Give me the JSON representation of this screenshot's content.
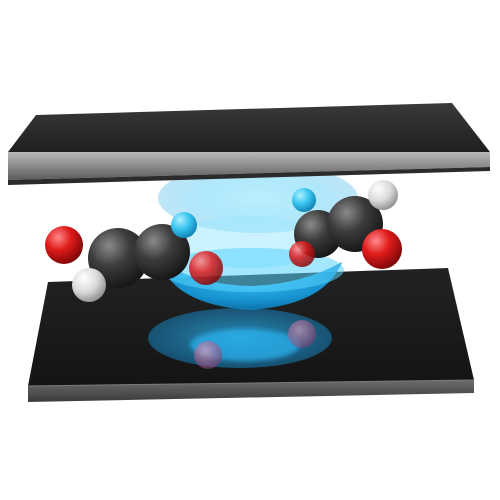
{
  "scene": {
    "background_color": "#ffffff",
    "plate_top_color": "#2a2a2a",
    "plate_edge_color": "#8f8f8f",
    "plate_shadow_color": "#111111",
    "cavity_glow_color": "#2fb8f0",
    "carbon_color": "#3a3a3a",
    "oxygen_color": "#e01b1b",
    "hydrogen_color": "#e6e6e6",
    "halo_color": "#4fd2ff"
  }
}
